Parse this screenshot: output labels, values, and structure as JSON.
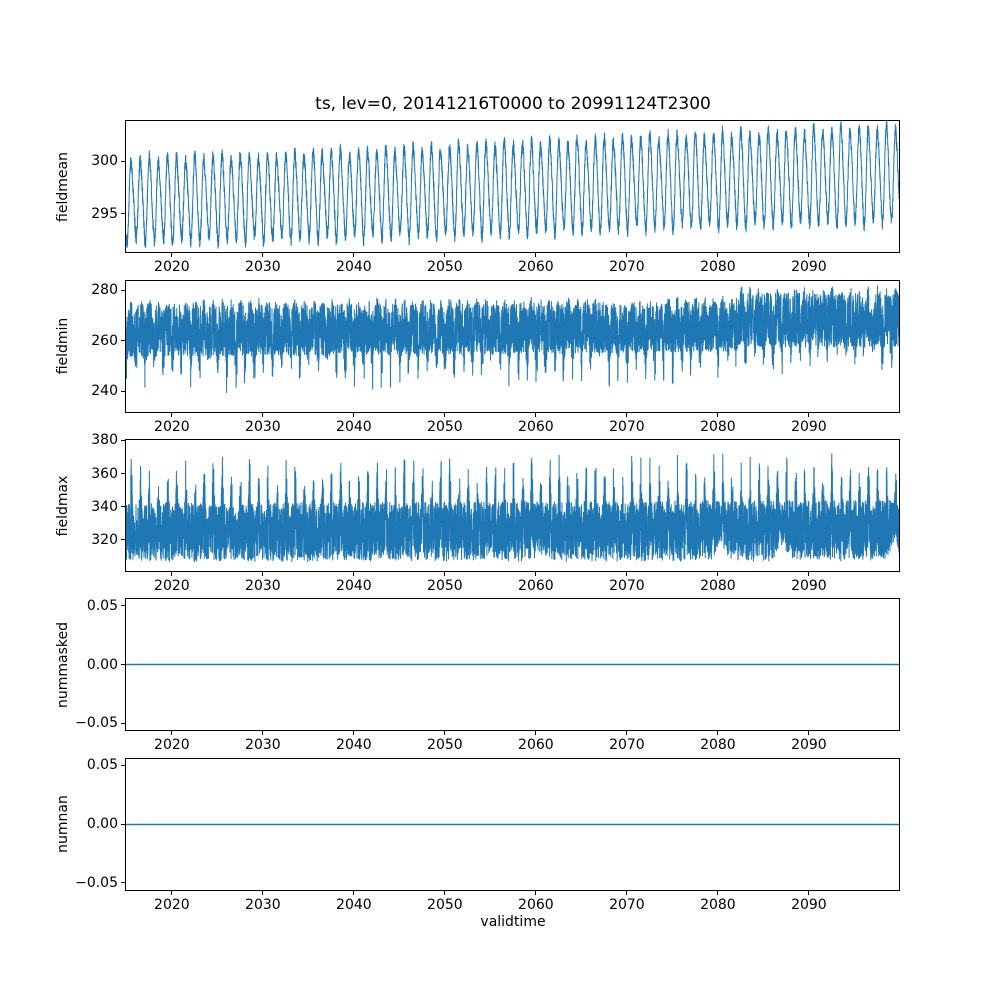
{
  "figure": {
    "title": "ts, lev=0, 20141216T0000 to 20991124T2300",
    "xlabel": "validtime",
    "line_color": "#1f77b4",
    "spine_color": "#000000",
    "background_color": "#ffffff"
  },
  "x_axis": {
    "range_years": [
      2014.96,
      2099.9
    ],
    "ticks": [
      {
        "v": 2020,
        "label": "2020"
      },
      {
        "v": 2030,
        "label": "2030"
      },
      {
        "v": 2040,
        "label": "2040"
      },
      {
        "v": 2050,
        "label": "2050"
      },
      {
        "v": 2060,
        "label": "2060"
      },
      {
        "v": 2070,
        "label": "2070"
      },
      {
        "v": 2080,
        "label": "2080"
      },
      {
        "v": 2090,
        "label": "2090"
      }
    ]
  },
  "chart_data": [
    {
      "type": "line",
      "id": "fieldmean",
      "ylabel": "fieldmean",
      "ylim": [
        291.4,
        303.8
      ],
      "yticks": [
        {
          "v": 295,
          "label": "295"
        },
        {
          "v": 300,
          "label": "300"
        }
      ],
      "legend": "none",
      "grid": false,
      "description": "Dense annual oscillation (~one cycle per year, peaks ~300.5 rising to ~303.3, troughs ~292 rising to ~294.5) with slow upward trend",
      "series": [
        {
          "name": "fieldmean",
          "kind": "seasonal_oscillation",
          "seed": 11,
          "noise_amp": 0.65,
          "harmonic2_amp": 0.45,
          "anchors": [
            {
              "year": 2015,
              "mid": 296.3,
              "amp": 3.7
            },
            {
              "year": 2030,
              "mid": 296.6,
              "amp": 3.8
            },
            {
              "year": 2050,
              "mid": 297.2,
              "amp": 4.0
            },
            {
              "year": 2070,
              "mid": 297.9,
              "amp": 4.1
            },
            {
              "year": 2085,
              "mid": 298.4,
              "amp": 4.2
            },
            {
              "year": 2100,
              "mid": 298.8,
              "amp": 4.3
            }
          ]
        }
      ]
    },
    {
      "type": "line",
      "id": "fieldmin",
      "ylabel": "fieldmin",
      "ylim": [
        232.0,
        283.8
      ],
      "yticks": [
        {
          "v": 240,
          "label": "240"
        },
        {
          "v": 260,
          "label": "260"
        },
        {
          "v": 280,
          "label": "280"
        }
      ],
      "legend": "none",
      "grid": false,
      "description": "Solid band ~254-276 with winter downward spikes to ~236-245; regime shift around 2082 to higher band ~258-281",
      "series": [
        {
          "name": "fieldmin",
          "kind": "band_with_down_spikes",
          "seed": 22,
          "anchors": [
            {
              "year": 2015,
              "top": 276.2,
              "bottom": 254.0,
              "spike_min": 236.5
            },
            {
              "year": 2045,
              "top": 276.2,
              "bottom": 254.5,
              "spike_min": 238.0
            },
            {
              "year": 2070,
              "top": 276.8,
              "bottom": 255.5,
              "spike_min": 240.0
            },
            {
              "year": 2081.5,
              "top": 277.0,
              "bottom": 256.0,
              "spike_min": 242.0
            },
            {
              "year": 2082.5,
              "top": 280.8,
              "bottom": 257.5,
              "spike_min": 244.5
            },
            {
              "year": 2100,
              "top": 281.2,
              "bottom": 258.0,
              "spike_min": 245.0
            }
          ]
        }
      ]
    },
    {
      "type": "line",
      "id": "fieldmax",
      "ylabel": "fieldmax",
      "ylim": [
        301.3,
        380.2
      ],
      "yticks": [
        {
          "v": 320,
          "label": "320"
        },
        {
          "v": 340,
          "label": "340"
        },
        {
          "v": 360,
          "label": "360"
        },
        {
          "v": 380,
          "label": "380"
        }
      ],
      "legend": "none",
      "grid": false,
      "description": "Solid band ~307-343 with annual upward spikes reaching ~360-376; floor bumps (+9/10) near 2080, 2087 and 2099",
      "series": [
        {
          "name": "fieldmax",
          "kind": "band_with_up_spikes",
          "seed": 33,
          "floor_noise": 0.8,
          "anchors": [
            {
              "year": 2015,
              "bottom": 307.3,
              "top": 342.0,
              "spike_max": 373.0
            },
            {
              "year": 2050,
              "bottom": 307.5,
              "top": 343.0,
              "spike_max": 374.0
            },
            {
              "year": 2100,
              "bottom": 308.0,
              "top": 344.0,
              "spike_max": 376.0
            }
          ],
          "floor_bumps": [
            {
              "year": 2080.3,
              "amp": 10.0,
              "width": 0.6
            },
            {
              "year": 2087.0,
              "amp": 9.0,
              "width": 0.6
            },
            {
              "year": 2099.3,
              "amp": 10.0,
              "width": 0.45
            }
          ]
        }
      ]
    },
    {
      "type": "line",
      "id": "nummasked",
      "ylabel": "nummasked",
      "ylim": [
        -0.0557,
        0.0557
      ],
      "yticks": [
        {
          "v": 0.05,
          "label": "0.05"
        },
        {
          "v": 0.0,
          "label": "0.00"
        },
        {
          "v": -0.05,
          "label": "−0.05"
        }
      ],
      "legend": "none",
      "grid": false,
      "description": "Constant zero line across the full time range",
      "series": [
        {
          "name": "nummasked",
          "kind": "constant",
          "value": 0.0
        }
      ]
    },
    {
      "type": "line",
      "id": "numnan",
      "ylabel": "numnan",
      "ylim": [
        -0.0557,
        0.0557
      ],
      "yticks": [
        {
          "v": 0.05,
          "label": "0.05"
        },
        {
          "v": 0.0,
          "label": "0.00"
        },
        {
          "v": -0.05,
          "label": "−0.05"
        }
      ],
      "legend": "none",
      "grid": false,
      "description": "Constant zero line across the full time range",
      "series": [
        {
          "name": "numnan",
          "kind": "constant",
          "value": 0.0
        }
      ]
    }
  ]
}
